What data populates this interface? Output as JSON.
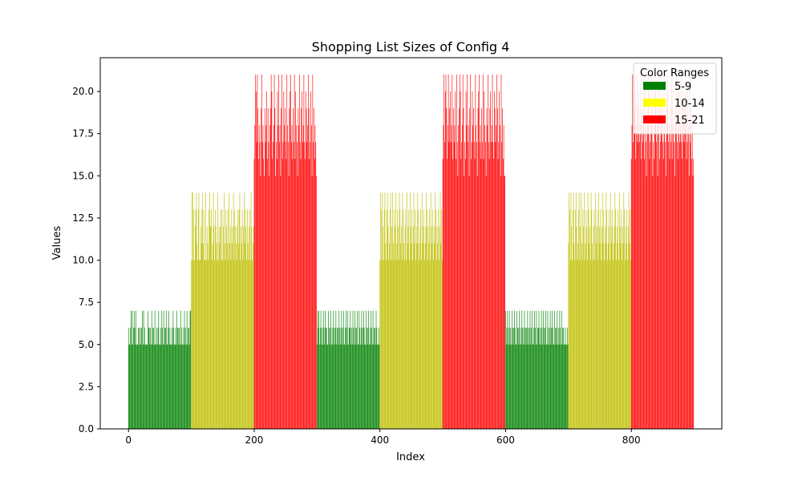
{
  "chart_data": {
    "type": "bar",
    "title": "Shopping List Sizes of Config 4",
    "xlabel": "Index",
    "ylabel": "Values",
    "xlim": [
      -44.95,
      943.95
    ],
    "ylim": [
      0,
      22
    ],
    "xticks": [
      0,
      200,
      400,
      600,
      800
    ],
    "yticks": [
      0.0,
      2.5,
      5.0,
      7.5,
      10.0,
      12.5,
      15.0,
      17.5,
      20.0
    ],
    "ytick_labels": [
      "0.0",
      "2.5",
      "5.0",
      "7.5",
      "10.0",
      "12.5",
      "15.0",
      "17.5",
      "20.0"
    ],
    "grid": false,
    "legend": {
      "title": "Color Ranges",
      "placement": "upper right",
      "entries": [
        {
          "label": "5-9",
          "color": "#008000"
        },
        {
          "label": "10-14",
          "color": "#ffff00"
        },
        {
          "label": "15-21",
          "color": "#ff0000"
        }
      ]
    },
    "bar_colors": {
      "5-9": "#008000",
      "10-14": "#bfbf00",
      "15-21": "#ff0000"
    },
    "segments": [
      {
        "x_start": 0,
        "x_end": 99,
        "range": "5-9",
        "values": [
          6,
          5,
          5,
          6,
          7,
          5,
          7,
          5,
          6,
          7,
          6,
          5,
          7,
          5,
          5,
          5,
          6,
          6,
          5,
          6,
          5,
          6,
          7,
          5,
          7,
          5,
          6,
          5,
          5,
          5,
          5,
          7,
          6,
          6,
          5,
          6,
          5,
          7,
          5,
          6,
          6,
          5,
          7,
          5,
          5,
          6,
          5,
          6,
          7,
          5,
          5,
          6,
          5,
          7,
          6,
          5,
          7,
          5,
          6,
          6,
          7,
          5,
          5,
          6,
          7,
          5,
          6,
          5,
          5,
          6,
          5,
          7,
          6,
          5,
          5,
          6,
          5,
          7,
          6,
          5,
          6,
          6,
          5,
          7,
          5,
          6,
          5,
          5,
          6,
          7,
          5,
          6,
          5,
          7,
          5,
          6,
          6,
          5,
          7,
          7
        ]
      },
      {
        "x_start": 100,
        "x_end": 199,
        "range": "10-14",
        "values": [
          10,
          14,
          14,
          10,
          13,
          10,
          12,
          13,
          14,
          11,
          10,
          13,
          14,
          10,
          10,
          12,
          11,
          13,
          14,
          11,
          13,
          10,
          10,
          14,
          10,
          12,
          11,
          10,
          13,
          14,
          12,
          12,
          13,
          10,
          11,
          14,
          12,
          10,
          13,
          12,
          11,
          10,
          14,
          10,
          12,
          11,
          12,
          13,
          10,
          13,
          10,
          12,
          14,
          11,
          10,
          13,
          12,
          11,
          13,
          10,
          14,
          11,
          12,
          10,
          13,
          11,
          12,
          14,
          10,
          13,
          12,
          11,
          10,
          12,
          13,
          11,
          13,
          14,
          10,
          12,
          11,
          13,
          10,
          12,
          14,
          11,
          13,
          12,
          10,
          13,
          11,
          10,
          12,
          13,
          10,
          14,
          12,
          10,
          11,
          12
        ]
      },
      {
        "x_start": 200,
        "x_end": 299,
        "range": "15-21",
        "values": [
          16,
          18,
          21,
          20,
          17,
          21,
          19,
          16,
          18,
          17,
          15,
          19,
          21,
          17,
          18,
          16,
          15,
          19,
          17,
          18,
          20,
          16,
          19,
          17,
          15,
          18,
          19,
          21,
          20,
          16,
          17,
          18,
          21,
          19,
          15,
          17,
          16,
          20,
          18,
          21,
          17,
          18,
          15,
          19,
          21,
          16,
          17,
          20,
          18,
          19,
          17,
          16,
          21,
          18,
          17,
          15,
          19,
          20,
          21,
          17,
          18,
          16,
          19,
          17,
          21,
          16,
          20,
          18,
          17,
          15,
          19,
          18,
          21,
          17,
          16,
          19,
          20,
          17,
          18,
          21,
          17,
          16,
          20,
          19,
          17,
          18,
          21,
          19,
          16,
          17,
          20,
          18,
          15,
          21,
          17,
          19,
          16,
          18,
          17,
          15
        ]
      },
      {
        "x_start": 300,
        "x_end": 399,
        "range": "5-9",
        "values": [
          5,
          7,
          6,
          7,
          5,
          6,
          7,
          5,
          6,
          5,
          7,
          6,
          5,
          7,
          6,
          6,
          5,
          5,
          7,
          6,
          5,
          6,
          7,
          5,
          6,
          5,
          7,
          6,
          5,
          6,
          7,
          5,
          6,
          6,
          5,
          7,
          6,
          5,
          6,
          7,
          5,
          6,
          7,
          5,
          5,
          6,
          7,
          6,
          5,
          7,
          5,
          6,
          6,
          7,
          5,
          6,
          5,
          7,
          6,
          5,
          7,
          6,
          5,
          6,
          7,
          5,
          5,
          7,
          6,
          5,
          6,
          7,
          5,
          6,
          7,
          6,
          5,
          5,
          7,
          6,
          5,
          6,
          7,
          5,
          6,
          5,
          7,
          6,
          5,
          7,
          5,
          6,
          6,
          5,
          7,
          6,
          5,
          5,
          6,
          5
        ]
      },
      {
        "x_start": 400,
        "x_end": 499,
        "range": "10-14",
        "values": [
          10,
          14,
          13,
          10,
          14,
          12,
          10,
          13,
          14,
          11,
          10,
          13,
          14,
          12,
          10,
          11,
          13,
          14,
          10,
          12,
          14,
          11,
          10,
          13,
          12,
          14,
          10,
          11,
          13,
          12,
          10,
          14,
          13,
          11,
          12,
          10,
          14,
          13,
          11,
          10,
          12,
          13,
          10,
          14,
          11,
          12,
          13,
          10,
          14,
          12,
          11,
          13,
          10,
          12,
          14,
          11,
          13,
          10,
          12,
          11,
          14,
          13,
          10,
          11,
          12,
          13,
          10,
          14,
          11,
          12,
          13,
          10,
          11,
          12,
          14,
          13,
          10,
          12,
          11,
          13,
          10,
          14,
          12,
          11,
          13,
          10,
          12,
          11,
          14,
          13,
          10,
          12,
          11,
          13,
          10,
          12,
          14,
          11,
          13,
          10
        ]
      },
      {
        "x_start": 500,
        "x_end": 599,
        "range": "15-21",
        "values": [
          16,
          18,
          21,
          17,
          20,
          21,
          19,
          16,
          18,
          21,
          17,
          19,
          20,
          17,
          18,
          21,
          16,
          19,
          17,
          18,
          20,
          16,
          21,
          17,
          15,
          18,
          19,
          21,
          20,
          16,
          17,
          18,
          21,
          19,
          15,
          17,
          16,
          20,
          18,
          21,
          17,
          18,
          15,
          19,
          21,
          16,
          17,
          20,
          18,
          19,
          17,
          16,
          21,
          18,
          17,
          15,
          19,
          20,
          21,
          17,
          18,
          16,
          19,
          17,
          21,
          16,
          20,
          18,
          17,
          15,
          19,
          18,
          21,
          17,
          16,
          19,
          20,
          17,
          18,
          21,
          17,
          16,
          20,
          19,
          17,
          18,
          21,
          19,
          16,
          17,
          20,
          18,
          15,
          21,
          17,
          19,
          16,
          18,
          15,
          15
        ]
      },
      {
        "x_start": 600,
        "x_end": 699,
        "range": "5-9",
        "values": [
          7,
          5,
          6,
          7,
          5,
          6,
          7,
          5,
          6,
          5,
          7,
          6,
          5,
          6,
          7,
          6,
          5,
          5,
          7,
          6,
          5,
          6,
          7,
          5,
          6,
          5,
          7,
          6,
          5,
          6,
          7,
          5,
          6,
          6,
          5,
          7,
          6,
          5,
          6,
          7,
          5,
          6,
          7,
          5,
          5,
          6,
          7,
          6,
          5,
          7,
          5,
          6,
          6,
          7,
          5,
          6,
          5,
          7,
          6,
          5,
          7,
          6,
          5,
          6,
          7,
          5,
          5,
          7,
          6,
          5,
          6,
          7,
          5,
          6,
          7,
          6,
          5,
          5,
          7,
          6,
          5,
          6,
          7,
          5,
          6,
          5,
          7,
          6,
          5,
          7,
          5,
          6,
          6,
          5,
          5,
          6,
          5,
          5,
          6,
          5
        ]
      },
      {
        "x_start": 700,
        "x_end": 799,
        "range": "10-14",
        "values": [
          11,
          14,
          13,
          10,
          14,
          12,
          10,
          13,
          14,
          11,
          10,
          13,
          14,
          12,
          10,
          11,
          13,
          14,
          10,
          12,
          14,
          11,
          10,
          13,
          12,
          14,
          10,
          11,
          13,
          12,
          10,
          14,
          13,
          11,
          12,
          10,
          14,
          13,
          11,
          10,
          12,
          13,
          10,
          14,
          11,
          12,
          13,
          10,
          14,
          12,
          11,
          13,
          10,
          12,
          14,
          11,
          13,
          10,
          12,
          11,
          14,
          13,
          10,
          11,
          12,
          13,
          10,
          14,
          11,
          12,
          13,
          10,
          11,
          12,
          14,
          13,
          10,
          12,
          11,
          13,
          10,
          14,
          12,
          11,
          13,
          10,
          12,
          11,
          14,
          13,
          10,
          12,
          11,
          13,
          10,
          12,
          14,
          11,
          13,
          10
        ]
      },
      {
        "x_start": 800,
        "x_end": 899,
        "range": "15-21",
        "values": [
          16,
          18,
          21,
          17,
          20,
          21,
          19,
          16,
          18,
          21,
          17,
          19,
          20,
          17,
          18,
          21,
          16,
          19,
          17,
          18,
          20,
          16,
          21,
          17,
          15,
          18,
          19,
          21,
          20,
          16,
          17,
          18,
          21,
          19,
          15,
          17,
          16,
          20,
          18,
          21,
          17,
          18,
          15,
          19,
          21,
          16,
          17,
          20,
          18,
          19,
          17,
          16,
          21,
          18,
          17,
          15,
          19,
          20,
          21,
          17,
          18,
          16,
          19,
          17,
          21,
          16,
          20,
          18,
          17,
          15,
          19,
          18,
          21,
          17,
          16,
          19,
          20,
          17,
          18,
          21,
          17,
          16,
          20,
          19,
          17,
          18,
          21,
          19,
          16,
          17,
          20,
          18,
          15,
          21,
          17,
          19,
          16,
          18,
          15,
          16
        ]
      }
    ]
  }
}
